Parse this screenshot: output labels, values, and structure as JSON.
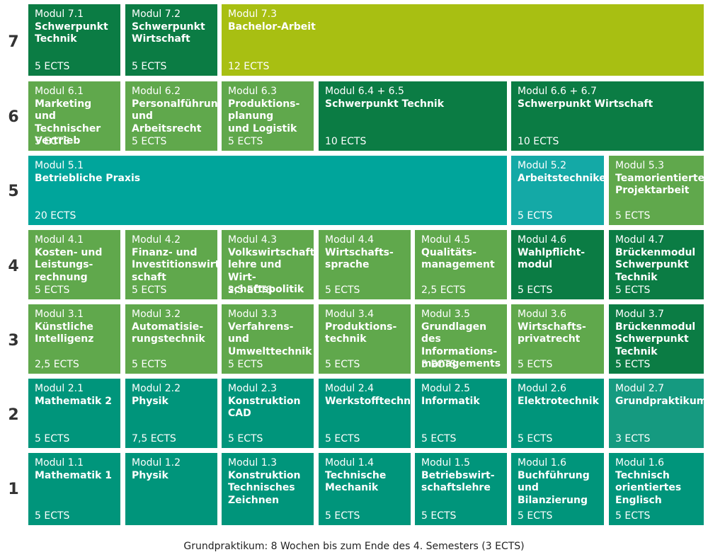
{
  "rows": [
    "7",
    "6",
    "5",
    "4",
    "3",
    "2",
    "1"
  ],
  "modules": [
    {
      "id": "m71",
      "mod": "Modul 7.1",
      "name": "Schwerpunkt\nTechnik",
      "ects": "5 ECTS",
      "color": "#0b7c44"
    },
    {
      "id": "m72",
      "mod": "Modul 7.2",
      "name": "Schwerpunkt\nWirtschaft",
      "ects": "5 ECTS",
      "color": "#0b7c44"
    },
    {
      "id": "m73",
      "mod": "Modul 7.3",
      "name": "Bachelor-Arbeit",
      "ects": "12 ECTS",
      "color": "#a8bf12"
    },
    {
      "id": "m61",
      "mod": "Modul 6.1",
      "name": "Marketing und\nTechnischer\nVertrieb",
      "ects": "5 ECTS",
      "color": "#60a84c"
    },
    {
      "id": "m62",
      "mod": "Modul 6.2",
      "name": "Personalführung\nund Arbeitsrecht",
      "ects": "5 ECTS",
      "color": "#60a84c"
    },
    {
      "id": "m63",
      "mod": "Modul 6.3",
      "name": "Produktions-\nplanung\nund Logistik",
      "ects": "5 ECTS",
      "color": "#60a84c"
    },
    {
      "id": "m64",
      "mod": "Modul 6.4 + 6.5",
      "name": "Schwerpunkt Technik",
      "ects": "10 ECTS",
      "color": "#0b7c44"
    },
    {
      "id": "m66",
      "mod": "Modul 6.6 + 6.7",
      "name": "Schwerpunkt Wirtschaft",
      "ects": "10 ECTS",
      "color": "#0b7c44"
    },
    {
      "id": "m51",
      "mod": "Modul 5.1",
      "name": "Betriebliche Praxis",
      "ects": "20 ECTS",
      "color": "#00a59b"
    },
    {
      "id": "m52",
      "mod": "Modul 5.2",
      "name": "Arbeitstechniken",
      "ects": "5 ECTS",
      "color": "#14a9a6"
    },
    {
      "id": "m53",
      "mod": "Modul 5.3",
      "name": "Teamorientierte\nProjektarbeit",
      "ects": "5 ECTS",
      "color": "#60a84c"
    },
    {
      "id": "m41",
      "mod": "Modul 4.1",
      "name": "Kosten- und\nLeistungs-\nrechnung",
      "ects": "5 ECTS",
      "color": "#60a84c"
    },
    {
      "id": "m42",
      "mod": "Modul 4.2",
      "name": "Finanz- und\nInvestitionswirt-\nschaft",
      "ects": "5 ECTS",
      "color": "#60a84c"
    },
    {
      "id": "m43",
      "mod": "Modul 4.3",
      "name": "Volkswirtschafts-\nlehre und Wirt-\nschaftspolitik",
      "ects": "2,5 ECTS",
      "color": "#60a84c"
    },
    {
      "id": "m44",
      "mod": "Modul 4.4",
      "name": "Wirtschafts-\nsprache",
      "ects": "5 ECTS",
      "color": "#60a84c"
    },
    {
      "id": "m45",
      "mod": "Modul 4.5",
      "name": "Qualitäts-\nmanagement",
      "ects": "2,5 ECTS",
      "color": "#60a84c"
    },
    {
      "id": "m46",
      "mod": "Modul 4.6",
      "name": "Wahlpflicht-\nmodul",
      "ects": "5 ECTS",
      "color": "#0b7c44"
    },
    {
      "id": "m47",
      "mod": "Modul 4.7",
      "name": "Brückenmodul\nSchwerpunkt\nTechnik",
      "ects": "5 ECTS",
      "color": "#0b7c44"
    },
    {
      "id": "m31",
      "mod": "Modul 3.1",
      "name": "Künstliche\nIntelligenz",
      "ects": "2,5 ECTS",
      "color": "#60a84c"
    },
    {
      "id": "m32",
      "mod": "Modul 3.2",
      "name": "Automatisie-\nrungstechnik",
      "ects": "5 ECTS",
      "color": "#60a84c"
    },
    {
      "id": "m33",
      "mod": "Modul 3.3",
      "name": "Verfahrens- und\nUmwelttechnik",
      "ects": "5 ECTS",
      "color": "#60a84c"
    },
    {
      "id": "m34",
      "mod": "Modul 3.4",
      "name": "Produktions-\ntechnik",
      "ects": "5 ECTS",
      "color": "#60a84c"
    },
    {
      "id": "m35",
      "mod": "Modul 3.5",
      "name": "Grundlagen des\nInformations-\nmanagements",
      "ects": "5 ECTS",
      "color": "#60a84c"
    },
    {
      "id": "m36",
      "mod": "Modul 3.6",
      "name": "Wirtschafts-\nprivatrecht",
      "ects": "5 ECTS",
      "color": "#60a84c"
    },
    {
      "id": "m37",
      "mod": "Modul 3.7",
      "name": "Brückenmodul\nSchwerpunkt\nTechnik",
      "ects": "5 ECTS",
      "color": "#0b7c44"
    },
    {
      "id": "m21",
      "mod": "Modul 2.1",
      "name": "Mathematik 2",
      "ects": "5 ECTS",
      "color": "#00957b"
    },
    {
      "id": "m22",
      "mod": "Modul 2.2",
      "name": "Physik",
      "ects": "7,5 ECTS",
      "color": "#00957b"
    },
    {
      "id": "m23",
      "mod": "Modul 2.3",
      "name": "Konstruktion\nCAD",
      "ects": "5 ECTS",
      "color": "#00957b"
    },
    {
      "id": "m24",
      "mod": "Modul 2.4",
      "name": "Werkstofftechnik",
      "ects": "5 ECTS",
      "color": "#00957b"
    },
    {
      "id": "m25",
      "mod": "Modul 2.5",
      "name": "Informatik",
      "ects": "5 ECTS",
      "color": "#00957b"
    },
    {
      "id": "m26",
      "mod": "Modul 2.6",
      "name": "Elektrotechnik",
      "ects": "5 ECTS",
      "color": "#00957b"
    },
    {
      "id": "m27",
      "mod": "Modul 2.7",
      "name": "Grundpraktikum",
      "ects": "3 ECTS",
      "color": "#159a80"
    },
    {
      "id": "m11",
      "mod": "Modul 1.1",
      "name": "Mathematik 1",
      "ects": "5 ECTS",
      "color": "#00957b"
    },
    {
      "id": "m12",
      "mod": "Modul 1.2",
      "name": "Physik",
      "ects": "",
      "color": "#00957b"
    },
    {
      "id": "m13",
      "mod": "Modul 1.3",
      "name": "Konstruktion\nTechnisches\nZeichnen",
      "ects": "",
      "color": "#00957b"
    },
    {
      "id": "m14",
      "mod": "Modul 1.4",
      "name": "Technische\nMechanik",
      "ects": "5 ECTS",
      "color": "#00957b"
    },
    {
      "id": "m15",
      "mod": "Modul 1.5",
      "name": "Betriebswirt-\nschaftslehre",
      "ects": "5 ECTS",
      "color": "#00957b"
    },
    {
      "id": "m16",
      "mod": "Modul 1.6",
      "name": "Buchführung und\nBilanzierung",
      "ects": "5 ECTS",
      "color": "#00957b"
    },
    {
      "id": "m16b",
      "mod": "Modul 1.6",
      "name": "Technisch\norientiertes\nEnglisch",
      "ects": "5 ECTS",
      "color": "#00957b"
    }
  ],
  "footnote": "Grundpraktikum: 8 Wochen bis zum Ende des 4. Semesters (3 ECTS)"
}
